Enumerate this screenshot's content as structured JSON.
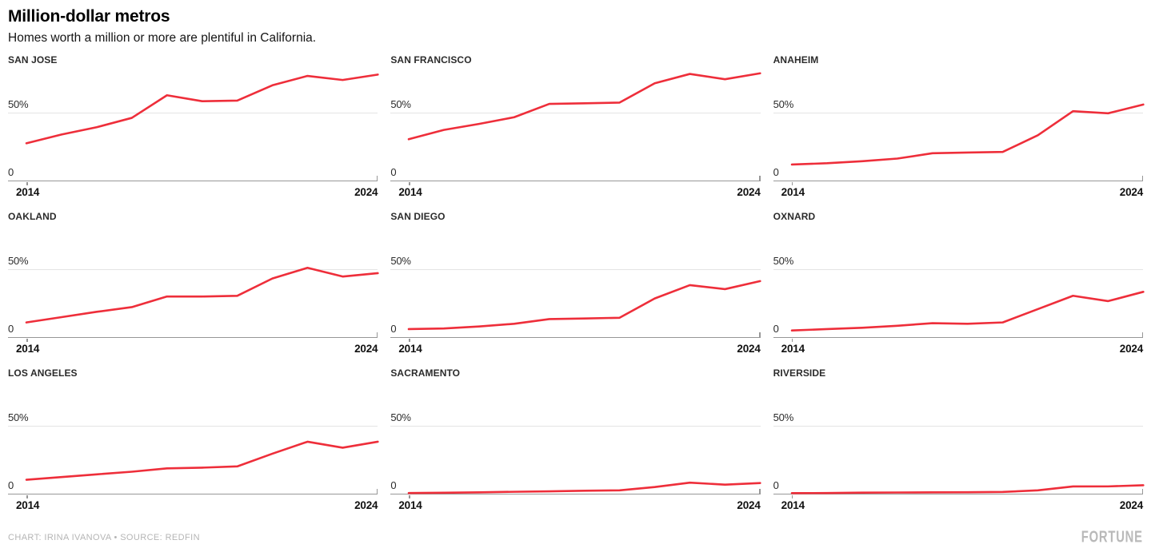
{
  "header": {
    "title": "Million-dollar metros",
    "subtitle": "Homes worth a million or more are plentiful in California."
  },
  "axis": {
    "y_gridline_label": "50%",
    "y_zero_label": "0",
    "x_start_label": "2014",
    "x_end_label": "2024"
  },
  "footer": {
    "credit": "CHART: IRINA IVANOVA • SOURCE: REDFIN",
    "brand": "FORTUNE"
  },
  "colors": {
    "line": "#ee2e3a",
    "gridline": "#e4e4e4",
    "axis": "#979797",
    "text": "#111111",
    "muted": "#b5b5b5"
  },
  "chart_data": {
    "type": "line",
    "layout": "3x3 small multiples, shared scale",
    "title": "Million-dollar metros",
    "subtitle": "Homes worth a million or more are plentiful in California.",
    "x": [
      2014,
      2015,
      2016,
      2017,
      2018,
      2019,
      2020,
      2021,
      2022,
      2023,
      2024
    ],
    "x_tick_labels": [
      "2014",
      "2024"
    ],
    "y_tick_labels": [
      "0",
      "50%"
    ],
    "ylim": [
      0,
      83
    ],
    "gridline_at": 50,
    "legend": "none",
    "unit": "percent",
    "series": [
      {
        "name": "SAN JOSE",
        "values": [
          28,
          34.5,
          40,
          47,
          64,
          59.5,
          60,
          71.5,
          78.5,
          75.5,
          79.5
        ]
      },
      {
        "name": "SAN FRANCISCO",
        "values": [
          31,
          38,
          42.5,
          47.5,
          57.5,
          58,
          58.5,
          73,
          80,
          76,
          80.5
        ]
      },
      {
        "name": "ANAHEIM",
        "values": [
          12,
          13,
          14.5,
          16.5,
          20.5,
          21,
          21.5,
          34,
          52,
          50.5,
          57
        ]
      },
      {
        "name": "OAKLAND",
        "values": [
          11,
          15,
          19,
          22.5,
          30.5,
          30.5,
          31,
          44,
          52,
          45.5,
          48
        ]
      },
      {
        "name": "SAN DIEGO",
        "values": [
          6,
          6.5,
          8,
          10,
          13.5,
          14,
          14.5,
          29,
          39,
          36,
          42
        ]
      },
      {
        "name": "OXNARD",
        "values": [
          5,
          6,
          7,
          8.5,
          10.5,
          10,
          11,
          21,
          31,
          27,
          34
        ]
      },
      {
        "name": "LOS ANGELES",
        "values": [
          10.5,
          12.5,
          14.5,
          16.5,
          19,
          19.5,
          20.5,
          30,
          39,
          34.5,
          39
        ]
      },
      {
        "name": "SACRAMENTO",
        "values": [
          0.5,
          0.7,
          1,
          1.4,
          1.8,
          2.2,
          2.5,
          5,
          8.3,
          6.8,
          8
        ]
      },
      {
        "name": "RIVERSIDE",
        "values": [
          0.4,
          0.5,
          0.8,
          0.9,
          1,
          1.1,
          1.3,
          2.5,
          5.4,
          5.5,
          6.3
        ]
      }
    ]
  }
}
